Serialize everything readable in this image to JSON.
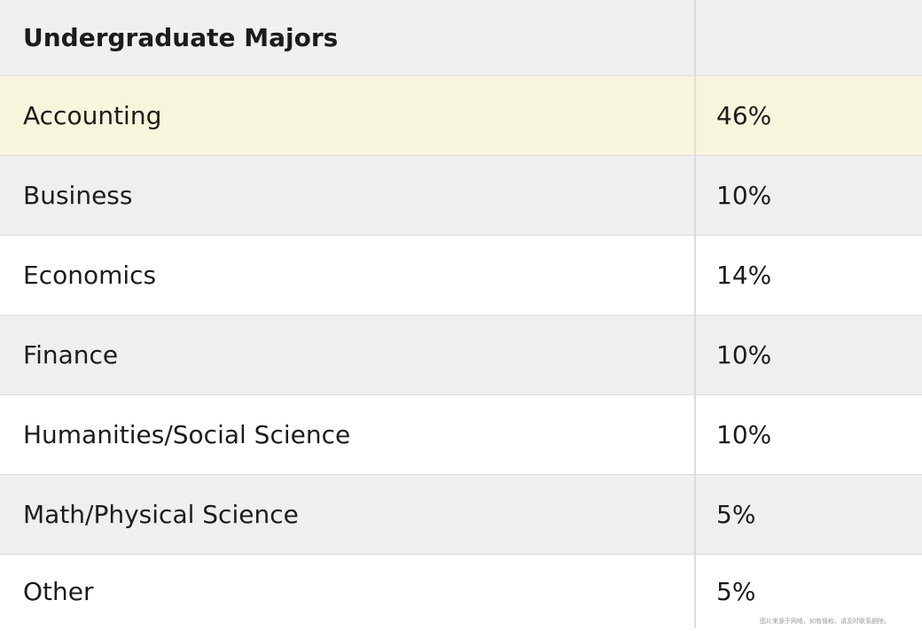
{
  "chart_data": {
    "type": "table",
    "columns": [
      "Undergraduate Majors",
      ""
    ],
    "rows": [
      {
        "major": "Accounting",
        "percent": "46%"
      },
      {
        "major": "Business",
        "percent": "10%"
      },
      {
        "major": "Economics",
        "percent": "14%"
      },
      {
        "major": "Finance",
        "percent": "10%"
      },
      {
        "major": "Humanities/Social Science",
        "percent": "10%"
      },
      {
        "major": "Math/Physical Science",
        "percent": "5%"
      },
      {
        "major": "Other",
        "percent": "5%"
      }
    ],
    "values": [
      46,
      10,
      14,
      10,
      10,
      5,
      5
    ],
    "categories": [
      "Accounting",
      "Business",
      "Economics",
      "Finance",
      "Humanities/Social Science",
      "Math/Physical Science",
      "Other"
    ]
  },
  "colors": {
    "header_bg": "#f0f0f0",
    "highlight_bg": "#f7f5dc",
    "shade_bg": "#efeef1",
    "plain_bg": "#ffffff",
    "border": "#dcdcdc"
  },
  "watermark": "图片来源于网络，如有侵权，请及时联系删除。"
}
